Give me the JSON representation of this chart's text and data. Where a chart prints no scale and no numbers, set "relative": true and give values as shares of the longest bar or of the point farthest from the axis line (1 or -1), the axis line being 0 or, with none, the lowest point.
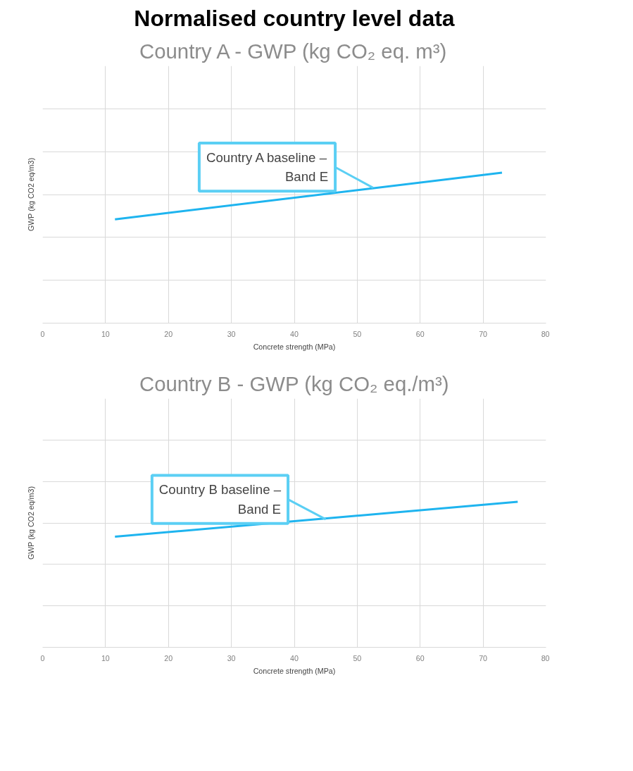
{
  "chart_data": [
    {
      "type": "line",
      "title": "Normalised country level data",
      "subtitle": "Country A - GWP (kg CO₂ eq. m³)",
      "xlabel": "Concrete strength (MPa)",
      "ylabel": "GWP (kg CO2 eq/m3)",
      "relative": true,
      "xlim": [
        0,
        80
      ],
      "xticks": [
        0,
        10,
        20,
        30,
        40,
        50,
        60,
        70,
        80
      ],
      "grid": true,
      "x": [
        11.5,
        73
      ],
      "series": [
        {
          "color": "#1eb4ef",
          "values": [
            0.69,
            1
          ]
        }
      ],
      "annotations": [
        {
          "text": "Country A baseline –\nBand E",
          "x": 52.5,
          "y": 0.9
        }
      ]
    },
    {
      "type": "line",
      "title": "Country B - GWP (kg CO₂ eq./m³)",
      "xlabel": "Concrete strength (MPa)",
      "ylabel": "GWP (kg CO2 eq/m3)",
      "relative": true,
      "xlim": [
        0,
        80
      ],
      "xticks": [
        0,
        10,
        20,
        30,
        40,
        50,
        60,
        70,
        80
      ],
      "grid": true,
      "x": [
        11.5,
        75.5
      ],
      "series": [
        {
          "color": "#1eb4ef",
          "values": [
            0.76,
            1
          ]
        }
      ],
      "annotations": [
        {
          "text": "Country B baseline –\nBand E",
          "x": 45,
          "y": 0.88
        }
      ]
    }
  ]
}
